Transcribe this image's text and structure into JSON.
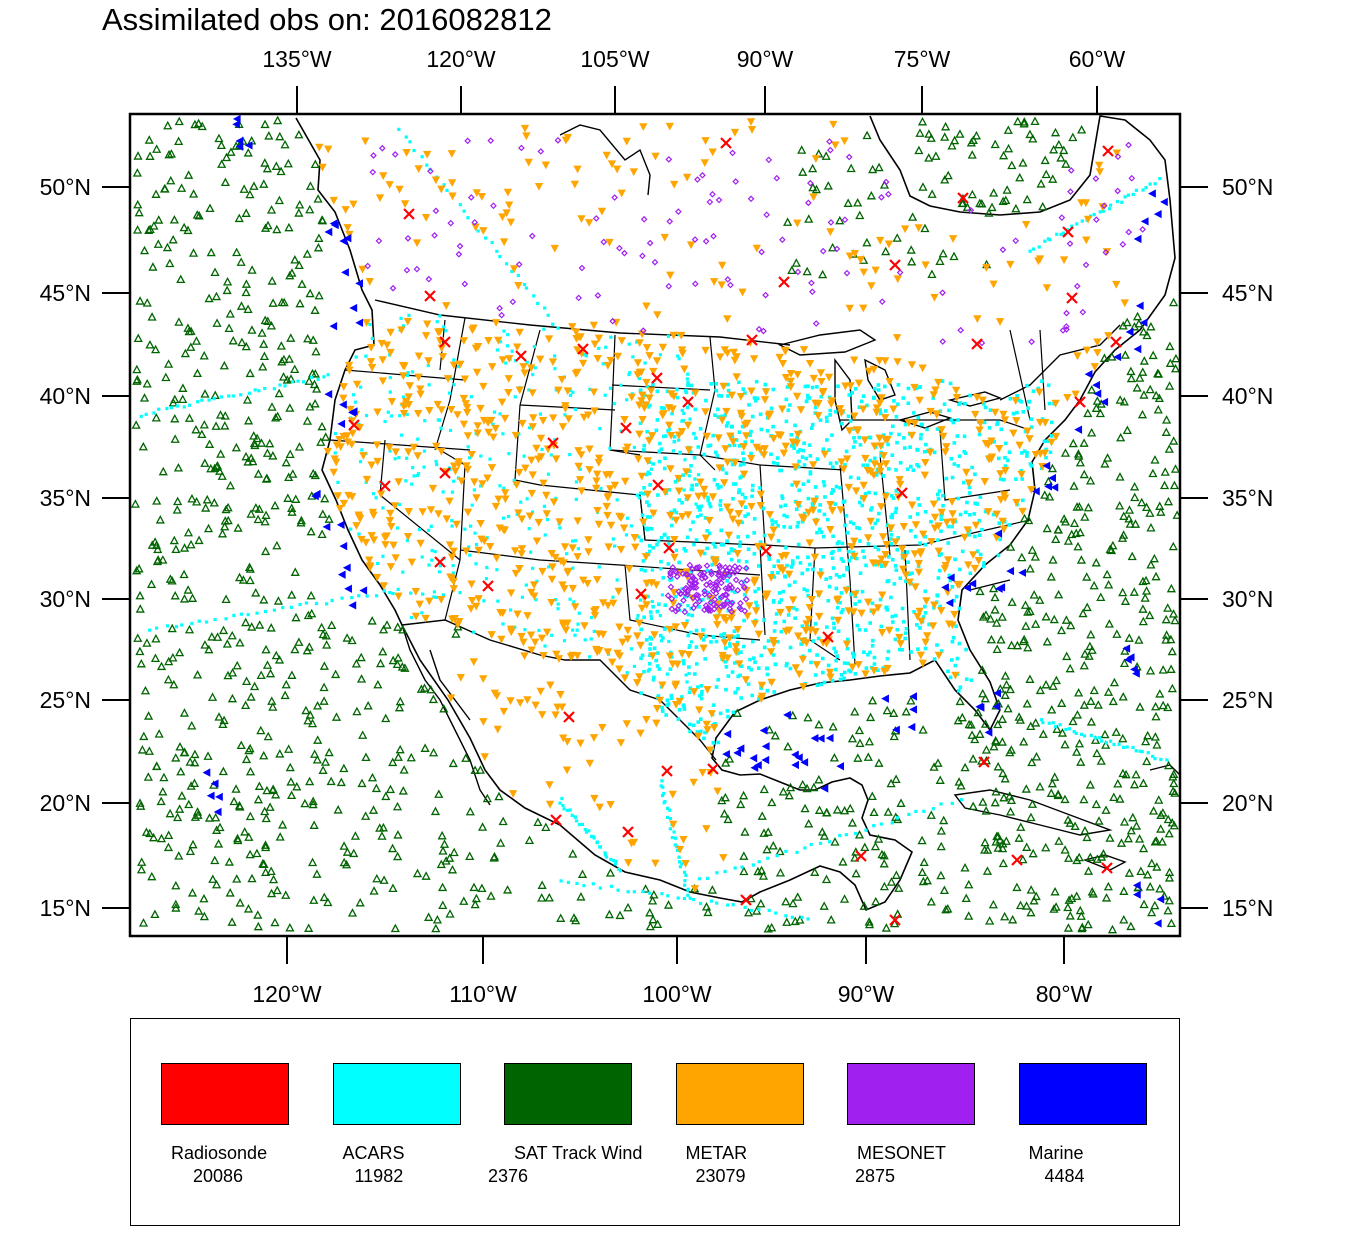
{
  "title": "Assimilated obs on: 2016082812",
  "map": {
    "top_lon_labels": [
      "135°W",
      "120°W",
      "105°W",
      "90°W",
      "75°W",
      "60°W"
    ],
    "bottom_lon_labels": [
      "120°W",
      "110°W",
      "100°W",
      "90°W",
      "80°W"
    ],
    "lat_labels": [
      "50°N",
      "45°N",
      "40°N",
      "35°N",
      "30°N",
      "25°N",
      "20°N",
      "15°N"
    ],
    "lon_range": [
      -128,
      -74
    ],
    "lat_range": [
      14,
      53
    ],
    "projection": "lambert-conformal",
    "colors": {
      "radiosonde": "#ff0000",
      "acars": "#00ffff",
      "sat_track_wind": "#006400",
      "metar": "#ffa500",
      "mesonet": "#a020f0",
      "marine": "#0000ff"
    }
  },
  "legend": [
    {
      "name": "Radiosonde",
      "count": "20086",
      "color": "#ff0000",
      "marker": "x-icon"
    },
    {
      "name": "ACARS",
      "count": "11982",
      "color": "#00ffff",
      "marker": "square-icon"
    },
    {
      "name": "SAT Track Wind",
      "count": "2376",
      "color": "#006400",
      "marker": "triangle-icon"
    },
    {
      "name": "METAR",
      "count": "23079",
      "color": "#ffa500",
      "marker": "down-triangle-icon"
    },
    {
      "name": "MESONET",
      "count": "2875",
      "color": "#a020f0",
      "marker": "diamond-icon"
    },
    {
      "name": "Marine",
      "count": "4484",
      "color": "#0000ff",
      "marker": "left-triangle-icon"
    }
  ]
}
